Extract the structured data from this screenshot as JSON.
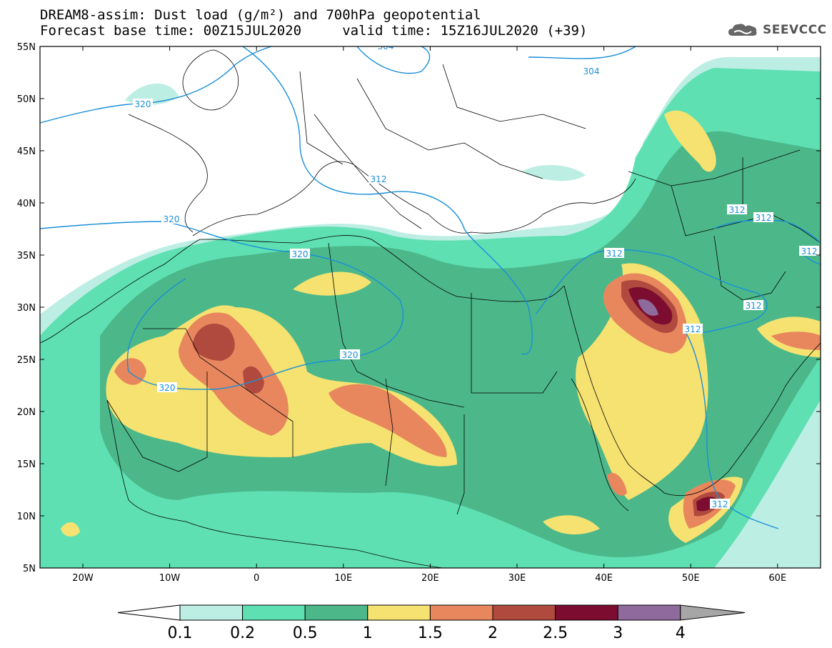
{
  "header": {
    "title_line1": "DREAM8-assim: Dust load (g/m²) and 700hPa geopotential",
    "title_line2": "Forecast base time: 00Z15JUL2020     valid time: 15Z16JUL2020 (+39)"
  },
  "logo": {
    "text": "SEEVCCC",
    "icon": "cloud-icon"
  },
  "map": {
    "lat_labels": [
      "55N",
      "50N",
      "45N",
      "40N",
      "35N",
      "30N",
      "25N",
      "20N",
      "15N",
      "10N",
      "5N"
    ],
    "lon_labels": [
      "20W",
      "10W",
      "0",
      "10E",
      "20E",
      "30E",
      "40E",
      "50E",
      "60E"
    ],
    "contour_labels": [
      "304",
      "304",
      "320",
      "320",
      "320",
      "312",
      "320",
      "320",
      "312",
      "312",
      "312",
      "312",
      "312",
      "312",
      "312"
    ]
  },
  "colorbar": {
    "ticks": [
      "0.1",
      "0.2",
      "0.5",
      "1",
      "1.5",
      "2",
      "2.5",
      "3",
      "4"
    ],
    "colors": [
      "#bdeee3",
      "#5ee0b3",
      "#4cb88a",
      "#f5e271",
      "#e8875d",
      "#b04a3f",
      "#7c0d30",
      "#8e6a9d",
      "#a6a6a6"
    ]
  },
  "palette": {
    "contour_line": "#1a8fd8",
    "land_border": "#000000"
  }
}
